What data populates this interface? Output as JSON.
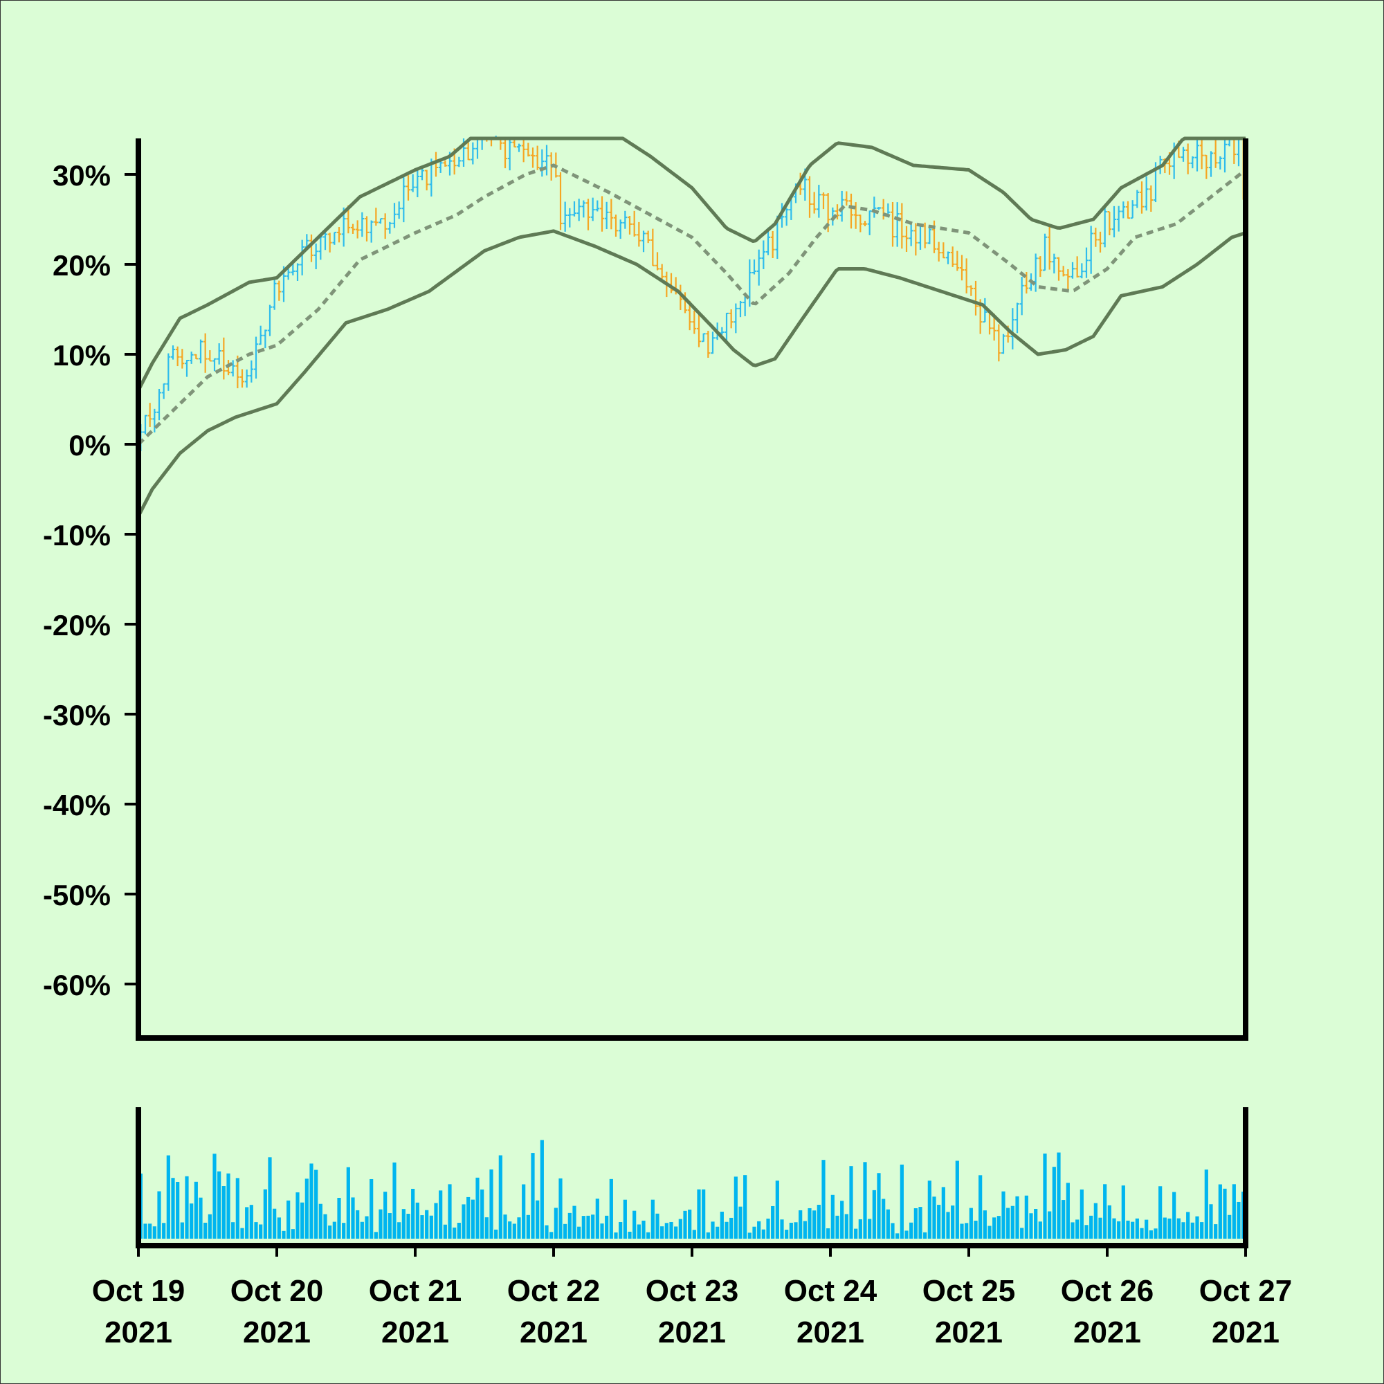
{
  "chart_data": {
    "type": "ohlc",
    "background": "#dbfdd6",
    "colors": {
      "up": "#2ebcec",
      "down": "#f5a623",
      "band": "#5f7a55",
      "middle": "#7f9479",
      "volume": "#00b5ef",
      "axis": "#000000"
    },
    "y_axis": {
      "range": [
        -66,
        34
      ],
      "ticks": [
        30,
        20,
        10,
        0,
        -10,
        -20,
        -30,
        -40,
        -50,
        -60
      ],
      "tick_labels": [
        "30%",
        "20%",
        "10%",
        "0%",
        "-10%",
        "-20%",
        "-30%",
        "-40%",
        "-50%",
        "-60%"
      ]
    },
    "x_axis": {
      "range_days": [
        0,
        8
      ],
      "ticks": [
        {
          "line1": "Oct 19",
          "line2": "2021"
        },
        {
          "line1": "Oct 20",
          "line2": "2021"
        },
        {
          "line1": "Oct 21",
          "line2": "2021"
        },
        {
          "line1": "Oct 22",
          "line2": "2021"
        },
        {
          "line1": "Oct 23",
          "line2": "2021"
        },
        {
          "line1": "Oct 24",
          "line2": "2021"
        },
        {
          "line1": "Oct 25",
          "line2": "2021"
        },
        {
          "line1": "Oct 26",
          "line2": "2021"
        },
        {
          "line1": "Oct 27",
          "line2": "2021"
        }
      ]
    },
    "price_path": [
      [
        0,
        0
      ],
      [
        0.25,
        10
      ],
      [
        0.5,
        11
      ],
      [
        0.75,
        6
      ],
      [
        1.0,
        18
      ],
      [
        1.25,
        22
      ],
      [
        1.5,
        24
      ],
      [
        1.75,
        24
      ],
      [
        2.0,
        30
      ],
      [
        2.25,
        31
      ],
      [
        2.5,
        35
      ],
      [
        2.75,
        32
      ],
      [
        3.0,
        32
      ],
      [
        3.05,
        25
      ],
      [
        3.3,
        27
      ],
      [
        3.6,
        23
      ],
      [
        3.9,
        17
      ],
      [
        4.1,
        11
      ],
      [
        4.3,
        15
      ],
      [
        4.5,
        20
      ],
      [
        4.75,
        29
      ],
      [
        5.0,
        26
      ],
      [
        5.3,
        25
      ],
      [
        5.6,
        24
      ],
      [
        5.8,
        22
      ],
      [
        6.0,
        18
      ],
      [
        6.2,
        11
      ],
      [
        6.35,
        15
      ],
      [
        6.55,
        22
      ],
      [
        6.75,
        19
      ],
      [
        7.0,
        25
      ],
      [
        7.25,
        27
      ],
      [
        7.5,
        33
      ],
      [
        7.75,
        31
      ],
      [
        7.95,
        34
      ],
      [
        8.0,
        26
      ]
    ],
    "band_upper": [
      [
        0,
        6
      ],
      [
        0.1,
        9
      ],
      [
        0.3,
        14
      ],
      [
        0.5,
        15.5
      ],
      [
        0.8,
        18
      ],
      [
        1.0,
        18.5
      ],
      [
        1.3,
        23
      ],
      [
        1.6,
        27.5
      ],
      [
        2.0,
        30.5
      ],
      [
        2.25,
        32
      ],
      [
        2.4,
        34
      ],
      [
        3.5,
        34
      ],
      [
        3.7,
        32
      ],
      [
        4.0,
        28.5
      ],
      [
        4.25,
        24
      ],
      [
        4.45,
        22.5
      ],
      [
        4.6,
        24.5
      ],
      [
        4.85,
        31
      ],
      [
        5.05,
        33.5
      ],
      [
        5.3,
        33
      ],
      [
        5.6,
        31
      ],
      [
        6.0,
        30.5
      ],
      [
        6.25,
        28
      ],
      [
        6.45,
        25
      ],
      [
        6.65,
        24
      ],
      [
        6.9,
        25
      ],
      [
        7.1,
        28.5
      ],
      [
        7.4,
        31
      ],
      [
        7.55,
        34
      ],
      [
        8.0,
        34
      ]
    ],
    "band_middle": [
      [
        0,
        0
      ],
      [
        0.2,
        3
      ],
      [
        0.5,
        7.5
      ],
      [
        0.8,
        10
      ],
      [
        1.0,
        11
      ],
      [
        1.3,
        15
      ],
      [
        1.6,
        20.5
      ],
      [
        2.0,
        23.5
      ],
      [
        2.3,
        25.5
      ],
      [
        2.5,
        27.5
      ],
      [
        2.8,
        30
      ],
      [
        3.0,
        31
      ],
      [
        3.4,
        28
      ],
      [
        3.7,
        25.5
      ],
      [
        4.0,
        23
      ],
      [
        4.25,
        19
      ],
      [
        4.45,
        15.5
      ],
      [
        4.7,
        19
      ],
      [
        4.9,
        23
      ],
      [
        5.1,
        26.5
      ],
      [
        5.3,
        26
      ],
      [
        5.6,
        24.5
      ],
      [
        6.0,
        23.5
      ],
      [
        6.3,
        20
      ],
      [
        6.5,
        17.5
      ],
      [
        6.75,
        17
      ],
      [
        7.0,
        19.5
      ],
      [
        7.2,
        23
      ],
      [
        7.5,
        24.5
      ],
      [
        7.75,
        27.5
      ],
      [
        8.0,
        30.5
      ]
    ],
    "band_lower": [
      [
        0,
        -8
      ],
      [
        0.1,
        -5
      ],
      [
        0.3,
        -1
      ],
      [
        0.5,
        1.5
      ],
      [
        0.7,
        3
      ],
      [
        1.0,
        4.5
      ],
      [
        1.2,
        8
      ],
      [
        1.5,
        13.5
      ],
      [
        1.8,
        15
      ],
      [
        2.1,
        17
      ],
      [
        2.5,
        21.5
      ],
      [
        2.75,
        23
      ],
      [
        3.0,
        23.7
      ],
      [
        3.3,
        22
      ],
      [
        3.6,
        20
      ],
      [
        3.9,
        17
      ],
      [
        4.15,
        13
      ],
      [
        4.3,
        10.5
      ],
      [
        4.45,
        8.7
      ],
      [
        4.6,
        9.5
      ],
      [
        4.8,
        14
      ],
      [
        5.05,
        19.5
      ],
      [
        5.25,
        19.5
      ],
      [
        5.5,
        18.5
      ],
      [
        5.8,
        17
      ],
      [
        6.1,
        15.5
      ],
      [
        6.3,
        12.5
      ],
      [
        6.5,
        10
      ],
      [
        6.7,
        10.5
      ],
      [
        6.9,
        12
      ],
      [
        7.1,
        16.5
      ],
      [
        7.4,
        17.5
      ],
      [
        7.65,
        20
      ],
      [
        7.9,
        23
      ],
      [
        8.0,
        23.5
      ]
    ]
  }
}
